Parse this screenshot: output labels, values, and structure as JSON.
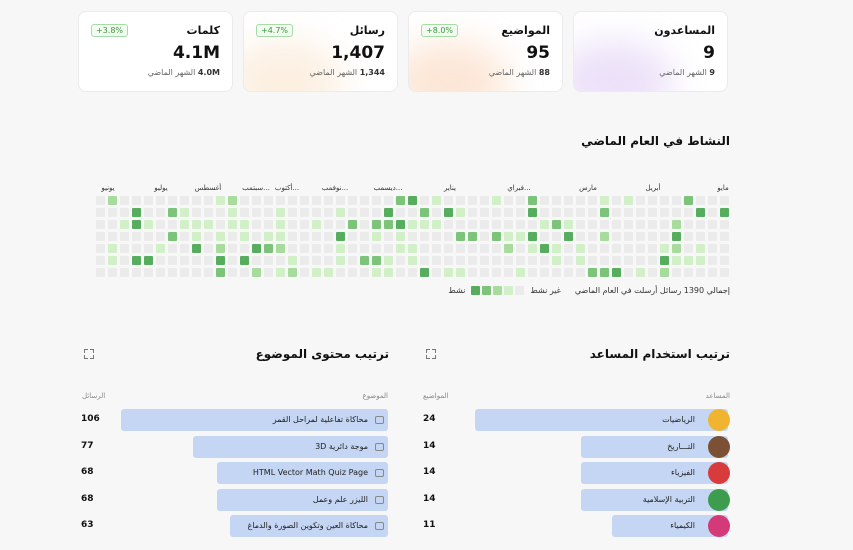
{
  "cards": [
    {
      "title": "المساعدون",
      "value": "9",
      "prev_value": "9",
      "prev_label": "الشهر الماضي",
      "badge": "",
      "glow": "#c9a8ec"
    },
    {
      "title": "المواضيع",
      "value": "95",
      "prev_value": "88",
      "prev_label": "الشهر الماضي",
      "badge": "+8.0%",
      "glow": "#f7b98a"
    },
    {
      "title": "رسائل",
      "value": "1,407",
      "prev_value": "1,344",
      "prev_label": "الشهر الماضي",
      "badge": "+4.7%",
      "glow": "#f5d2a9"
    },
    {
      "title": "كلمات",
      "value": "4.1M",
      "prev_value": "4.0M",
      "prev_label": "الشهر الماضي",
      "badge": "+3.8%",
      "glow": "#ffffff"
    }
  ],
  "activity": {
    "title": "النشاط في العام الماضي",
    "months": [
      "مايو",
      "أبريل",
      "مارس",
      "فبراي...",
      "يناير",
      "ديسمب...",
      "نوفمب...",
      "أكتوب...",
      "سبتمب...",
      "أغسطس",
      "يوليو",
      "يونيو"
    ],
    "summary": "إجمالي 1390 رسائل أرسلت في العام الماضي",
    "legend_inactive": "غير نشط",
    "legend_active": "نشط",
    "colors": {
      "empty": "#ebebeb",
      "l1": "#d2f0c8",
      "l2": "#a8dc9c",
      "l3": "#7cc47a",
      "l4": "#56ad5e"
    },
    "weeks": 53
  },
  "assistants_panel": {
    "title": "ترتيب استخدام المساعد",
    "col_name": "المساعد",
    "col_count": "المواضيع",
    "rows": [
      {
        "name": "الرياضيات",
        "count": "24",
        "ratio": 1.0,
        "avatar": "#f1b431"
      },
      {
        "name": "التـــاريخ",
        "count": "14",
        "ratio": 0.58,
        "avatar": "#7b5034"
      },
      {
        "name": "الفيزياء",
        "count": "14",
        "ratio": 0.58,
        "avatar": "#d83b3b"
      },
      {
        "name": "التربية الإسلامية",
        "count": "14",
        "ratio": 0.58,
        "avatar": "#3e9c4f"
      },
      {
        "name": "الكيمياء",
        "count": "11",
        "ratio": 0.46,
        "avatar": "#d53a78"
      }
    ]
  },
  "topics_panel": {
    "title": "ترتيب محتوى الموضوع",
    "col_name": "الموضوع",
    "col_count": "الرسائل",
    "rows": [
      {
        "name": "محاكاة تفاعلية لمراحل القمر",
        "count": "106",
        "ratio": 1.0
      },
      {
        "name": "موجة دائرية 3D",
        "count": "77",
        "ratio": 0.73
      },
      {
        "name": "HTML Vector Math Quiz Page",
        "count": "68",
        "ratio": 0.64
      },
      {
        "name": "الليزر علم وعمل",
        "count": "68",
        "ratio": 0.64
      },
      {
        "name": "محاكاة العين وتكوين الصورة والدماغ",
        "count": "63",
        "ratio": 0.59
      }
    ]
  }
}
